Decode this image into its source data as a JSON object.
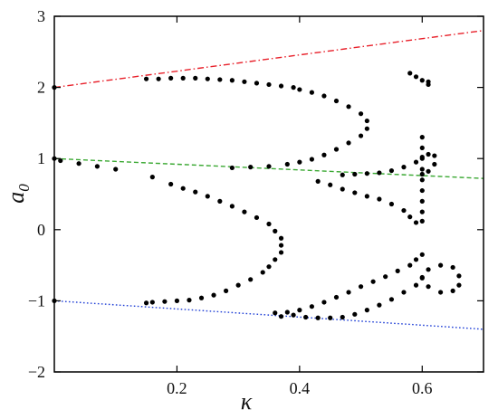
{
  "chart_data": {
    "type": "scatter",
    "title": "",
    "xlabel": "κ",
    "ylabel": "a",
    "ylabel_subscript": "0",
    "xlim": [
      0,
      0.7
    ],
    "ylim": [
      -2,
      3
    ],
    "x_ticks": [
      0.2,
      0.4,
      0.6
    ],
    "x_tick_labels": [
      "0.2",
      "0.4",
      "0.6"
    ],
    "y_ticks": [
      -2,
      -1,
      0,
      1,
      2,
      3
    ],
    "y_tick_labels": [
      "−2",
      "−1",
      "0",
      "1",
      "2",
      "3"
    ],
    "grid": false,
    "legend": "none",
    "lines": [
      {
        "style": "dash-dot",
        "color": "#e8202a",
        "x": [
          0,
          0.7
        ],
        "y": [
          2.0,
          2.8
        ]
      },
      {
        "style": "dashed",
        "color": "#3aa832",
        "x": [
          0,
          0.7
        ],
        "y": [
          1.0,
          0.72
        ]
      },
      {
        "style": "dotted",
        "color": "#1f3fd6",
        "x": [
          0,
          0.7
        ],
        "y": [
          -1.0,
          -1.4
        ]
      }
    ],
    "series": [
      {
        "marker": "circle",
        "color": "#000000",
        "points": [
          [
            0.0,
            2.0
          ],
          [
            0.0,
            1.0
          ],
          [
            0.0,
            -1.0
          ],
          [
            0.01,
            0.97
          ],
          [
            0.04,
            0.93
          ],
          [
            0.07,
            0.89
          ],
          [
            0.1,
            0.85
          ],
          [
            0.15,
            2.12
          ],
          [
            0.17,
            2.12
          ],
          [
            0.19,
            2.13
          ],
          [
            0.21,
            2.13
          ],
          [
            0.23,
            2.13
          ],
          [
            0.25,
            2.12
          ],
          [
            0.27,
            2.11
          ],
          [
            0.29,
            2.1
          ],
          [
            0.31,
            2.08
          ],
          [
            0.33,
            2.06
          ],
          [
            0.35,
            2.04
          ],
          [
            0.37,
            2.02
          ],
          [
            0.39,
            2.0
          ],
          [
            0.4,
            1.97
          ],
          [
            0.42,
            1.93
          ],
          [
            0.44,
            1.88
          ],
          [
            0.46,
            1.81
          ],
          [
            0.48,
            1.73
          ],
          [
            0.5,
            1.63
          ],
          [
            0.51,
            1.53
          ],
          [
            0.51,
            1.42
          ],
          [
            0.5,
            1.32
          ],
          [
            0.48,
            1.22
          ],
          [
            0.46,
            1.13
          ],
          [
            0.44,
            1.05
          ],
          [
            0.42,
            0.99
          ],
          [
            0.4,
            0.95
          ],
          [
            0.38,
            0.92
          ],
          [
            0.35,
            0.89
          ],
          [
            0.32,
            0.88
          ],
          [
            0.29,
            0.87
          ],
          [
            0.16,
            0.74
          ],
          [
            0.19,
            0.64
          ],
          [
            0.21,
            0.58
          ],
          [
            0.23,
            0.53
          ],
          [
            0.25,
            0.47
          ],
          [
            0.27,
            0.4
          ],
          [
            0.29,
            0.33
          ],
          [
            0.31,
            0.25
          ],
          [
            0.33,
            0.17
          ],
          [
            0.35,
            0.08
          ],
          [
            0.36,
            -0.02
          ],
          [
            0.37,
            -0.12
          ],
          [
            0.37,
            -0.22
          ],
          [
            0.37,
            -0.32
          ],
          [
            0.36,
            -0.42
          ],
          [
            0.35,
            -0.52
          ],
          [
            0.34,
            -0.6
          ],
          [
            0.32,
            -0.7
          ],
          [
            0.3,
            -0.78
          ],
          [
            0.28,
            -0.86
          ],
          [
            0.26,
            -0.92
          ],
          [
            0.24,
            -0.96
          ],
          [
            0.22,
            -0.99
          ],
          [
            0.2,
            -1.0
          ],
          [
            0.18,
            -1.01
          ],
          [
            0.16,
            -1.02
          ],
          [
            0.15,
            -1.03
          ],
          [
            0.36,
            -1.17
          ],
          [
            0.38,
            -1.16
          ],
          [
            0.4,
            -1.13
          ],
          [
            0.42,
            -1.08
          ],
          [
            0.44,
            -1.02
          ],
          [
            0.46,
            -0.95
          ],
          [
            0.48,
            -0.88
          ],
          [
            0.5,
            -0.8
          ],
          [
            0.52,
            -0.73
          ],
          [
            0.54,
            -0.66
          ],
          [
            0.56,
            -0.58
          ],
          [
            0.58,
            -0.5
          ],
          [
            0.59,
            -0.42
          ],
          [
            0.6,
            -0.35
          ],
          [
            0.37,
            -1.22
          ],
          [
            0.39,
            -1.2
          ],
          [
            0.41,
            -1.23
          ],
          [
            0.43,
            -1.24
          ],
          [
            0.45,
            -1.24
          ],
          [
            0.47,
            -1.23
          ],
          [
            0.49,
            -1.19
          ],
          [
            0.51,
            -1.13
          ],
          [
            0.53,
            -1.06
          ],
          [
            0.55,
            -0.98
          ],
          [
            0.57,
            -0.88
          ],
          [
            0.59,
            -0.78
          ],
          [
            0.6,
            -0.67
          ],
          [
            0.61,
            -0.56
          ],
          [
            0.63,
            -0.5
          ],
          [
            0.65,
            -0.53
          ],
          [
            0.66,
            -0.65
          ],
          [
            0.66,
            -0.78
          ],
          [
            0.65,
            -0.86
          ],
          [
            0.63,
            -0.88
          ],
          [
            0.61,
            -0.8
          ],
          [
            0.6,
            -0.68
          ],
          [
            0.47,
            0.77
          ],
          [
            0.49,
            0.78
          ],
          [
            0.51,
            0.79
          ],
          [
            0.53,
            0.8
          ],
          [
            0.55,
            0.83
          ],
          [
            0.57,
            0.88
          ],
          [
            0.59,
            0.95
          ],
          [
            0.6,
            1.02
          ],
          [
            0.61,
            1.06
          ],
          [
            0.62,
            1.04
          ],
          [
            0.62,
            0.92
          ],
          [
            0.61,
            0.82
          ],
          [
            0.6,
            0.78
          ],
          [
            0.43,
            0.68
          ],
          [
            0.45,
            0.63
          ],
          [
            0.47,
            0.57
          ],
          [
            0.49,
            0.52
          ],
          [
            0.51,
            0.47
          ],
          [
            0.53,
            0.43
          ],
          [
            0.55,
            0.36
          ],
          [
            0.57,
            0.27
          ],
          [
            0.58,
            0.18
          ],
          [
            0.59,
            0.1
          ],
          [
            0.6,
            0.12
          ],
          [
            0.6,
            0.25
          ],
          [
            0.6,
            0.4
          ],
          [
            0.6,
            0.55
          ],
          [
            0.6,
            0.7
          ],
          [
            0.6,
            0.85
          ],
          [
            0.6,
            1.0
          ],
          [
            0.6,
            1.15
          ],
          [
            0.6,
            1.3
          ],
          [
            0.58,
            2.2
          ],
          [
            0.59,
            2.15
          ],
          [
            0.6,
            2.1
          ],
          [
            0.61,
            2.04
          ],
          [
            0.61,
            2.08
          ]
        ]
      }
    ]
  }
}
